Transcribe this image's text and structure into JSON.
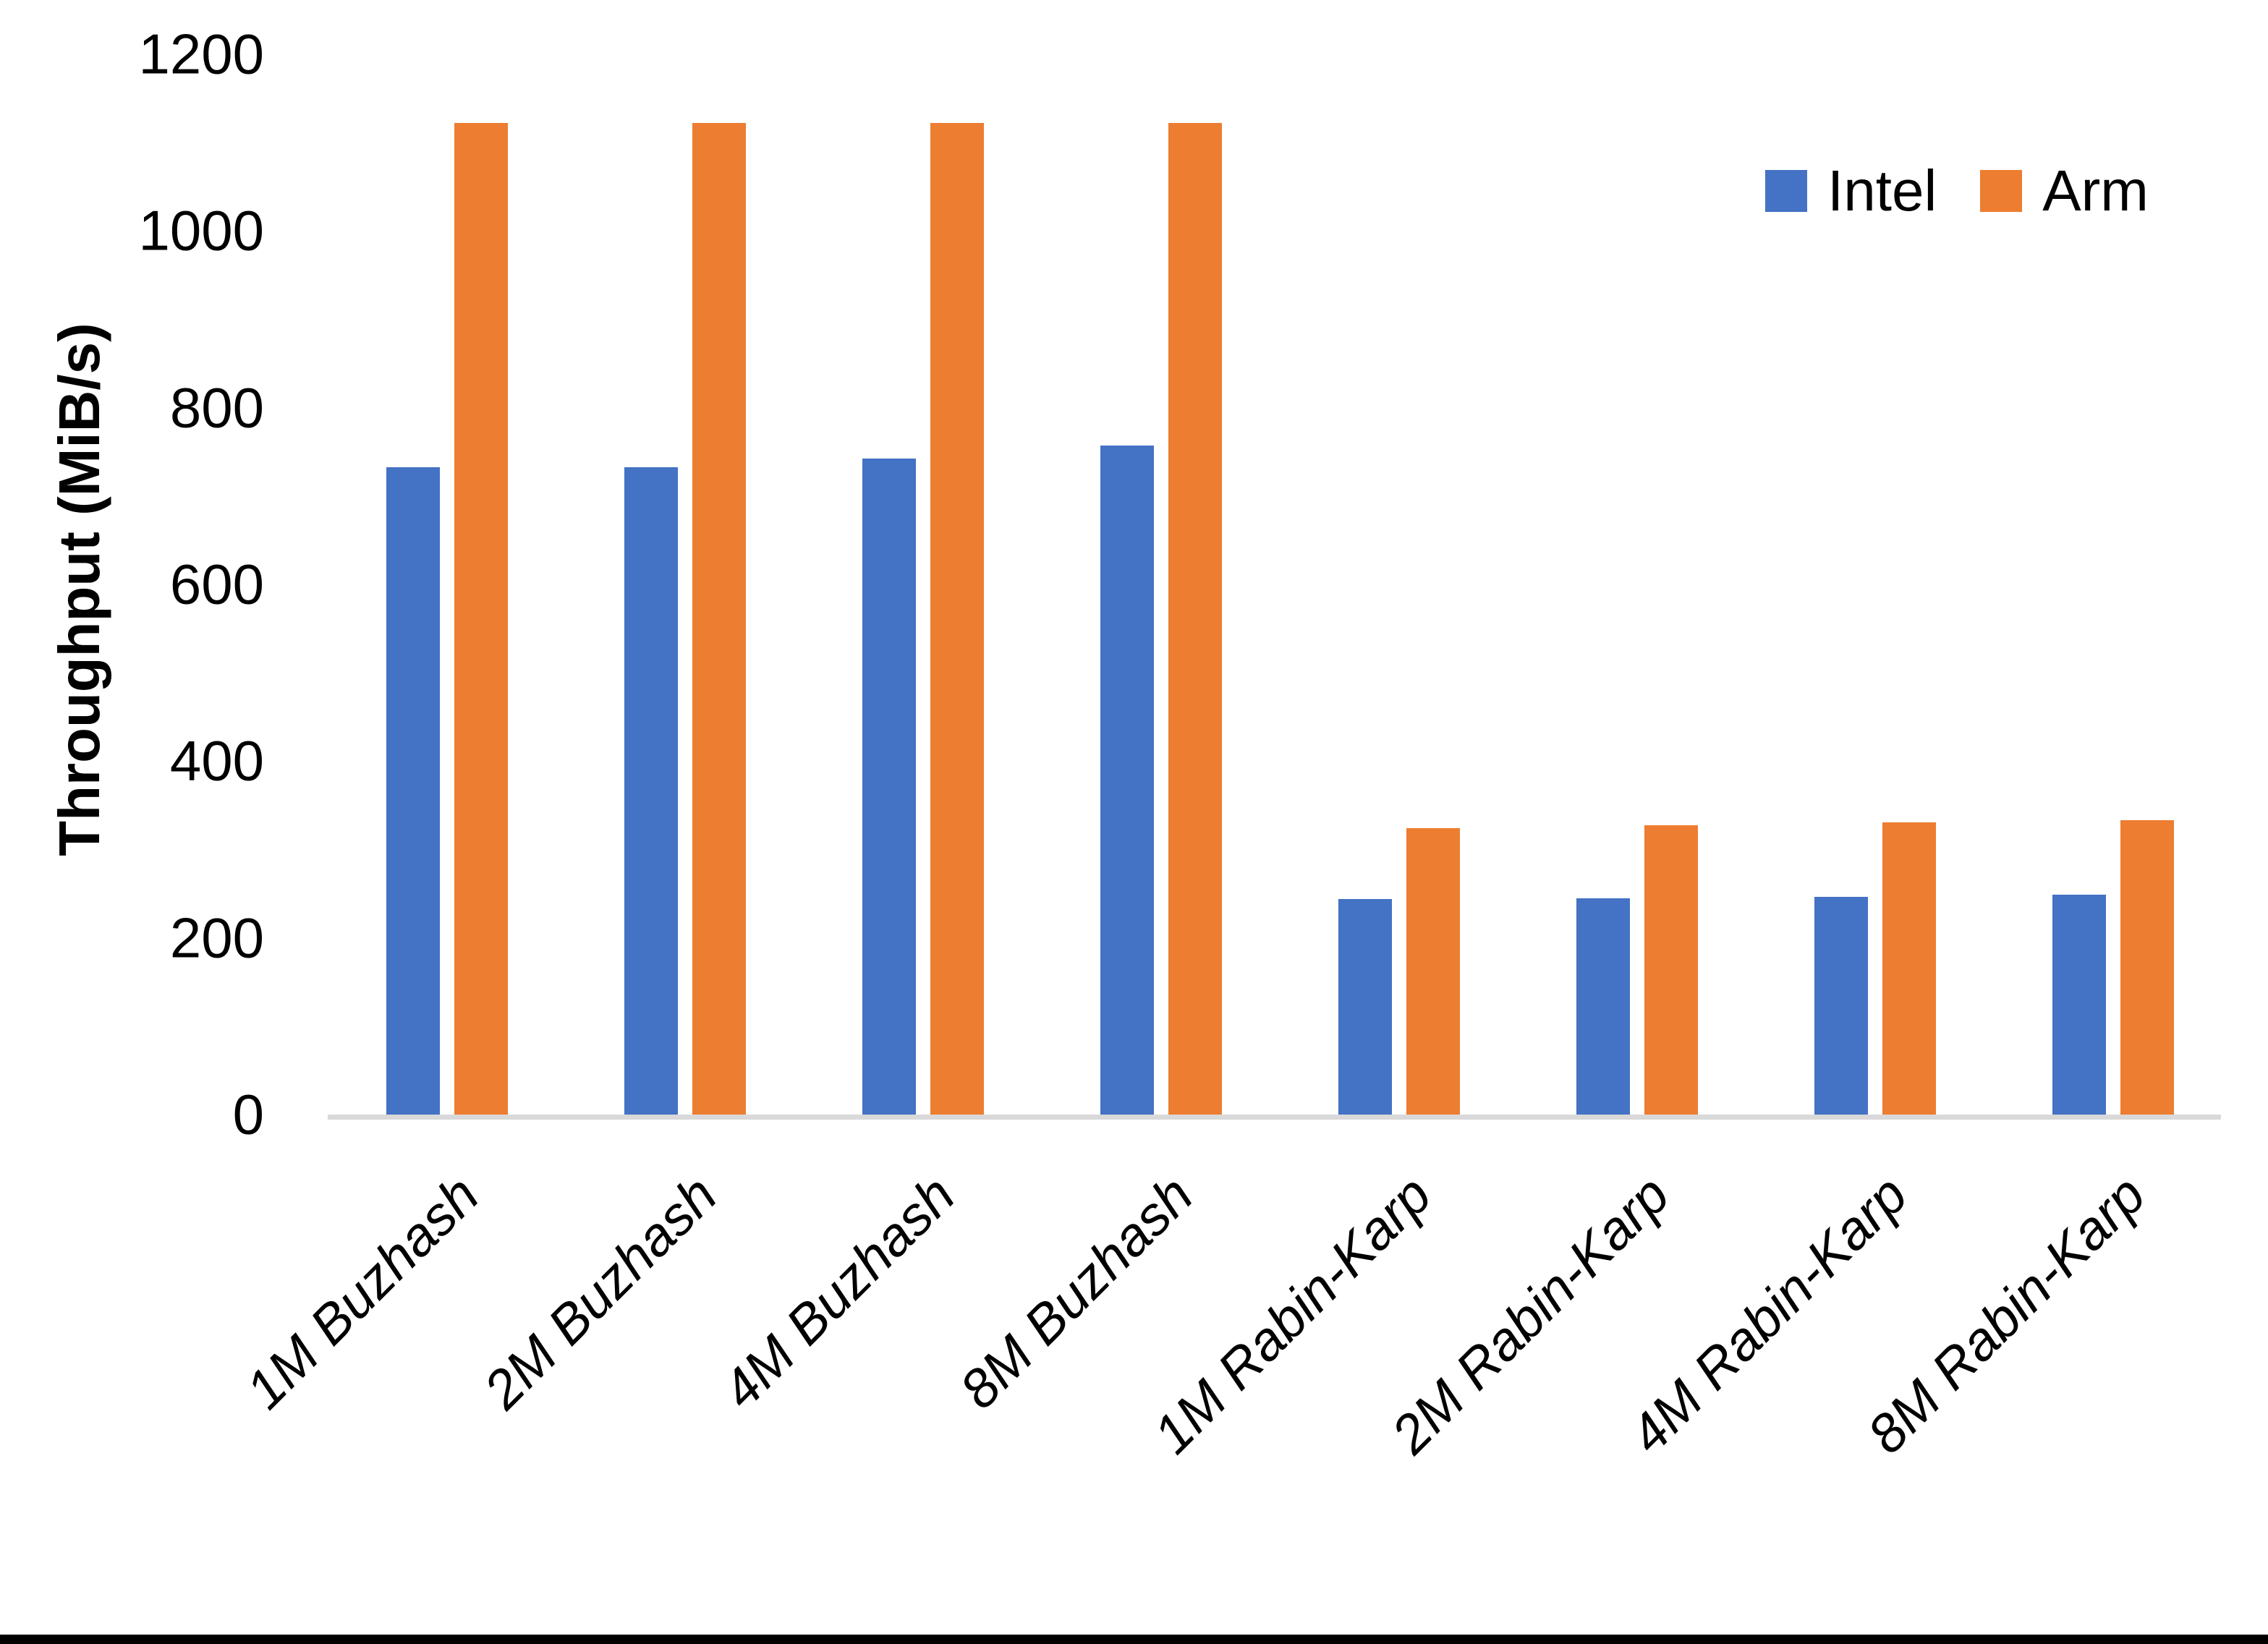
{
  "chart_data": {
    "type": "bar",
    "title": "",
    "xlabel": "",
    "ylabel": "Throughput (MiB/s)",
    "ylim": [
      0,
      1200
    ],
    "yticks": [
      0,
      200,
      400,
      600,
      800,
      1000,
      1200
    ],
    "grid": false,
    "legend_position": "top-right",
    "categories": [
      "1M Buzhash",
      "2M Buzhash",
      "4M Buzhash",
      "8M Buzhash",
      "1M Rabin-Karp",
      "2M Rabin-Karp",
      "4M Rabin-Karp",
      "8M Rabin-Karp"
    ],
    "series": [
      {
        "name": "Intel",
        "color": "#4472C4",
        "values": [
          735,
          735,
          745,
          760,
          246,
          247,
          249,
          251
        ]
      },
      {
        "name": "Arm",
        "color": "#ED7D31",
        "values": [
          1125,
          1125,
          1125,
          1125,
          327,
          330,
          333,
          336
        ]
      }
    ]
  },
  "colors": {
    "axis_line": "#D9D9D9",
    "text": "#000000",
    "background": "#FFFFFF",
    "bottom_border": "#000000"
  }
}
